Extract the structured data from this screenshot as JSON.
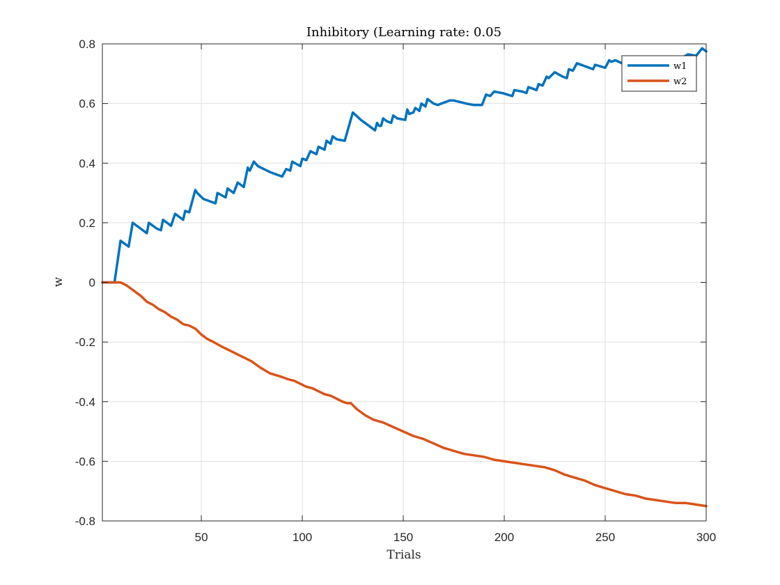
{
  "chart_data": {
    "type": "line",
    "title": "Inhibitory (Learning rate: 0.05",
    "xlabel": "Trials",
    "ylabel": "w",
    "xlim": [
      1,
      300
    ],
    "ylim": [
      -0.8,
      0.8
    ],
    "xticks": [
      50,
      100,
      150,
      200,
      250,
      300
    ],
    "yticks": [
      0.8,
      0.6,
      0.4,
      0.2,
      0,
      -0.2,
      -0.4,
      -0.6,
      -0.8
    ],
    "xtick_labels": [
      "50",
      "100",
      "150",
      "200",
      "250",
      "300"
    ],
    "ytick_labels": [
      "0.8",
      "0.6",
      "0.4",
      "0.2",
      "0",
      "-0.2",
      "-0.4",
      "-0.6",
      "-0.8"
    ],
    "grid": true,
    "legend_position": "top-right",
    "series": [
      {
        "name": "w1",
        "color": "#0072BD",
        "x": [
          1,
          7,
          10,
          14,
          16,
          20,
          23,
          24,
          28,
          30,
          31,
          33,
          35,
          37,
          41,
          42,
          44,
          47,
          48,
          51,
          57,
          58,
          62,
          63,
          64,
          66,
          68,
          71,
          73,
          74,
          76,
          78,
          84,
          90,
          92,
          94,
          95,
          99,
          100,
          102,
          104,
          107,
          108,
          111,
          112,
          114,
          115,
          117,
          121,
          125,
          129,
          133,
          136,
          137,
          138,
          139,
          140,
          142,
          144,
          145,
          147,
          151,
          152,
          153,
          155,
          156,
          158,
          159,
          161,
          162,
          165,
          167,
          173,
          175,
          181,
          185,
          189,
          191,
          193,
          195,
          199,
          204,
          205,
          209,
          211,
          212,
          214,
          216,
          217,
          219,
          221,
          222,
          225,
          229,
          231,
          232,
          234,
          236,
          240,
          244,
          245,
          250,
          252,
          253,
          255,
          260,
          265,
          271,
          275,
          279,
          283,
          287,
          291,
          295,
          298,
          300
        ],
        "values": [
          0,
          0,
          0.14,
          0.12,
          0.2,
          0.18,
          0.165,
          0.2,
          0.18,
          0.175,
          0.21,
          0.2,
          0.19,
          0.23,
          0.21,
          0.24,
          0.235,
          0.31,
          0.3,
          0.28,
          0.265,
          0.3,
          0.285,
          0.315,
          0.31,
          0.3,
          0.335,
          0.32,
          0.385,
          0.375,
          0.405,
          0.39,
          0.37,
          0.355,
          0.38,
          0.375,
          0.405,
          0.39,
          0.415,
          0.41,
          0.44,
          0.43,
          0.455,
          0.445,
          0.475,
          0.465,
          0.49,
          0.48,
          0.475,
          0.57,
          0.545,
          0.525,
          0.51,
          0.535,
          0.525,
          0.525,
          0.55,
          0.54,
          0.535,
          0.56,
          0.55,
          0.545,
          0.58,
          0.565,
          0.57,
          0.585,
          0.575,
          0.6,
          0.59,
          0.615,
          0.6,
          0.595,
          0.61,
          0.61,
          0.6,
          0.595,
          0.595,
          0.63,
          0.625,
          0.64,
          0.635,
          0.625,
          0.645,
          0.64,
          0.635,
          0.655,
          0.65,
          0.645,
          0.665,
          0.66,
          0.69,
          0.685,
          0.705,
          0.69,
          0.685,
          0.715,
          0.71,
          0.735,
          0.725,
          0.715,
          0.73,
          0.72,
          0.745,
          0.74,
          0.745,
          0.73,
          0.735,
          0.72,
          0.735,
          0.725,
          0.74,
          0.75,
          0.765,
          0.76,
          0.785,
          0.775
        ]
      },
      {
        "name": "w2",
        "color": "#D95319",
        "x": [
          1,
          8,
          10,
          13,
          15,
          17,
          20,
          23,
          26,
          29,
          32,
          35,
          38,
          41,
          44,
          47,
          50,
          53,
          56,
          60,
          63,
          66,
          69,
          72,
          75,
          79,
          84,
          89,
          93,
          96,
          99,
          102,
          105,
          108,
          111,
          114,
          117,
          120,
          122,
          124,
          127,
          131,
          135,
          140,
          145,
          150,
          155,
          160,
          165,
          170,
          175,
          180,
          185,
          190,
          195,
          200,
          205,
          210,
          215,
          220,
          225,
          230,
          235,
          240,
          245,
          250,
          255,
          260,
          265,
          270,
          275,
          280,
          285,
          290,
          295,
          300
        ],
        "values": [
          0,
          0,
          0,
          -0.01,
          -0.02,
          -0.03,
          -0.045,
          -0.065,
          -0.075,
          -0.09,
          -0.1,
          -0.115,
          -0.125,
          -0.14,
          -0.145,
          -0.155,
          -0.175,
          -0.19,
          -0.2,
          -0.215,
          -0.225,
          -0.235,
          -0.245,
          -0.255,
          -0.265,
          -0.285,
          -0.305,
          -0.315,
          -0.325,
          -0.33,
          -0.34,
          -0.35,
          -0.355,
          -0.365,
          -0.375,
          -0.38,
          -0.39,
          -0.4,
          -0.405,
          -0.405,
          -0.425,
          -0.445,
          -0.46,
          -0.47,
          -0.485,
          -0.5,
          -0.515,
          -0.525,
          -0.54,
          -0.555,
          -0.565,
          -0.575,
          -0.58,
          -0.585,
          -0.595,
          -0.6,
          -0.605,
          -0.61,
          -0.615,
          -0.62,
          -0.63,
          -0.645,
          -0.655,
          -0.665,
          -0.68,
          -0.69,
          -0.7,
          -0.71,
          -0.715,
          -0.725,
          -0.73,
          -0.735,
          -0.74,
          -0.74,
          -0.745,
          -0.75
        ]
      }
    ]
  }
}
